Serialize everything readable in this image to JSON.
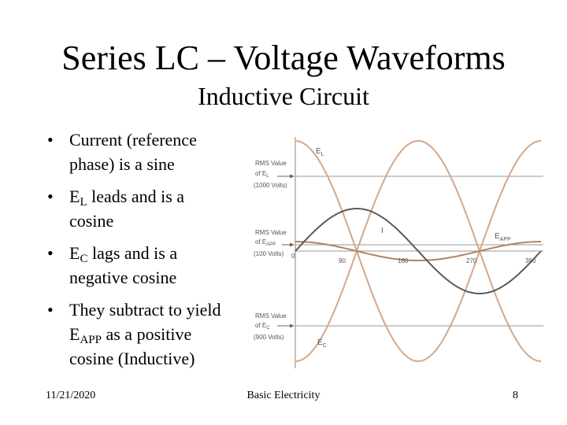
{
  "slide": {
    "title": "Series LC – Voltage Waveforms",
    "subtitle": "Inductive Circuit"
  },
  "bullets": [
    {
      "lines": [
        {
          "text": "Current (reference"
        },
        {
          "text": "phase) is a sine"
        }
      ]
    },
    {
      "lines": [
        {
          "text": "E",
          "sub": "L",
          "after": " leads and is a"
        },
        {
          "text": "cosine"
        }
      ]
    },
    {
      "lines": [
        {
          "text": "E",
          "sub": "C",
          "after": " lags and is a"
        },
        {
          "text": "negative cosine"
        }
      ]
    },
    {
      "lines": [
        {
          "text": "They subtract to yield"
        },
        {
          "text": "E",
          "sub": "APP",
          "after": " as a positive"
        },
        {
          "text": "cosine (Inductive)"
        }
      ]
    }
  ],
  "bullet_symbol": "•",
  "figure": {
    "rms_el": {
      "line1": "RMS Value",
      "line2_pre": "of E",
      "line2_sub": "L",
      "line3": "(1000 Volts)"
    },
    "rms_eapp": {
      "line1": "RMS Value",
      "line2_pre": "of E",
      "line2_sub": "APP",
      "line3": "(100 Volts)"
    },
    "rms_ec": {
      "line1": "RMS Value",
      "line2_pre": "of E",
      "line2_sub": "C",
      "line3": "(900 Volts)"
    },
    "label_el": {
      "main": "E",
      "sub": "L"
    },
    "label_ec": {
      "main": "E",
      "sub": "C"
    },
    "label_eapp": {
      "main": "E",
      "sub": "APP"
    },
    "label_i": "I",
    "angle_0": "0",
    "angle_90": "90",
    "angle_180": "180",
    "angle_270": "270",
    "angle_360": "360",
    "colors": {
      "el": "#d4a88a",
      "ec": "#d4a88a",
      "eapp": "#b48260",
      "current": "#5a5a5a",
      "grid": "#9a9a9a"
    }
  },
  "footer": {
    "date": "11/21/2020",
    "center": "Basic Electricity",
    "page": "8"
  }
}
